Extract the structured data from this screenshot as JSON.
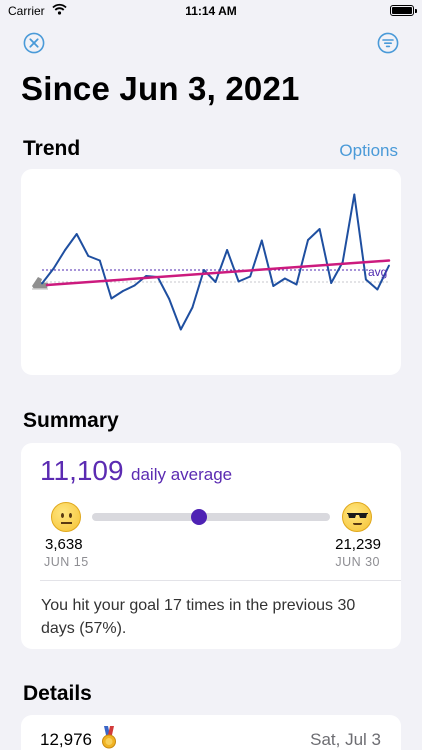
{
  "status_bar": {
    "carrier": "Carrier",
    "time": "11:14 AM"
  },
  "header": {
    "title": "Since Jun 3, 2021"
  },
  "trend": {
    "section_title": "Trend",
    "options_label": "Options",
    "avg_label": "avg",
    "line_color": "#1f4fa0",
    "trend_color": "#cc1a7e",
    "avg_color": "#4f2ab0"
  },
  "chart_data": {
    "type": "line",
    "title": "",
    "xlabel": "",
    "ylabel": "",
    "series": [
      {
        "values": [
          6300,
          9300,
          13000,
          16200,
          11800,
          10900,
          3300,
          4800,
          5900,
          7800,
          7600,
          3200,
          -2900,
          1500,
          9000,
          6600,
          13000,
          6700,
          7700,
          14900,
          5800,
          7300,
          6100,
          15000,
          17200,
          6400,
          10600,
          24100,
          7100,
          5100,
          9900
        ]
      }
    ],
    "trend_line": {
      "start": 6000,
      "end": 10900
    },
    "average": 9000,
    "ylim": [
      -6000,
      26000
    ],
    "grid": false,
    "legend": "none"
  },
  "summary": {
    "section_title": "Summary",
    "average_value": "11,109",
    "average_label": "daily average",
    "min_value": "3,638",
    "min_date": "JUN 15",
    "max_value": "21,239",
    "max_date": "JUN 30",
    "slider_fraction": 0.45,
    "goal_text": "You hit your goal 17 times in the previous 30 days (57%)."
  },
  "details": {
    "section_title": "Details",
    "rows": [
      {
        "value": "12,976",
        "date": "Sat, Jul 3"
      }
    ]
  }
}
